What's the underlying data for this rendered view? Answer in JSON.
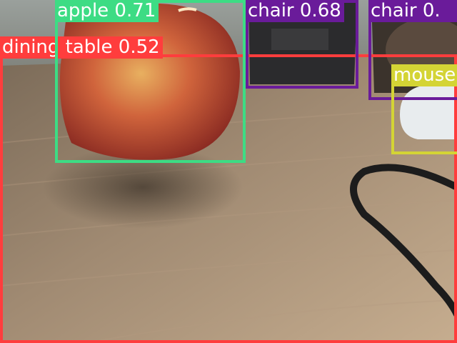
{
  "colors": {
    "dining_table": "#ff3d3d",
    "apple": "#3ddc84",
    "chair": "#6a1b9a",
    "mouse": "#d4d435",
    "label_text_light": "#ffffff",
    "label_text_dark": "#ffffff"
  },
  "detections": [
    {
      "name": "detection-dining-table",
      "label": "dining table 0.52",
      "color_key": "dining_table"
    },
    {
      "name": "detection-apple",
      "label": "apple 0.71",
      "color_key": "apple"
    },
    {
      "name": "detection-chair-1",
      "label": "chair 0.68",
      "color_key": "chair"
    },
    {
      "name": "detection-chair-2",
      "label": "chair 0.",
      "color_key": "chair"
    },
    {
      "name": "detection-mouse",
      "label": "mouse",
      "color_key": "mouse"
    }
  ]
}
